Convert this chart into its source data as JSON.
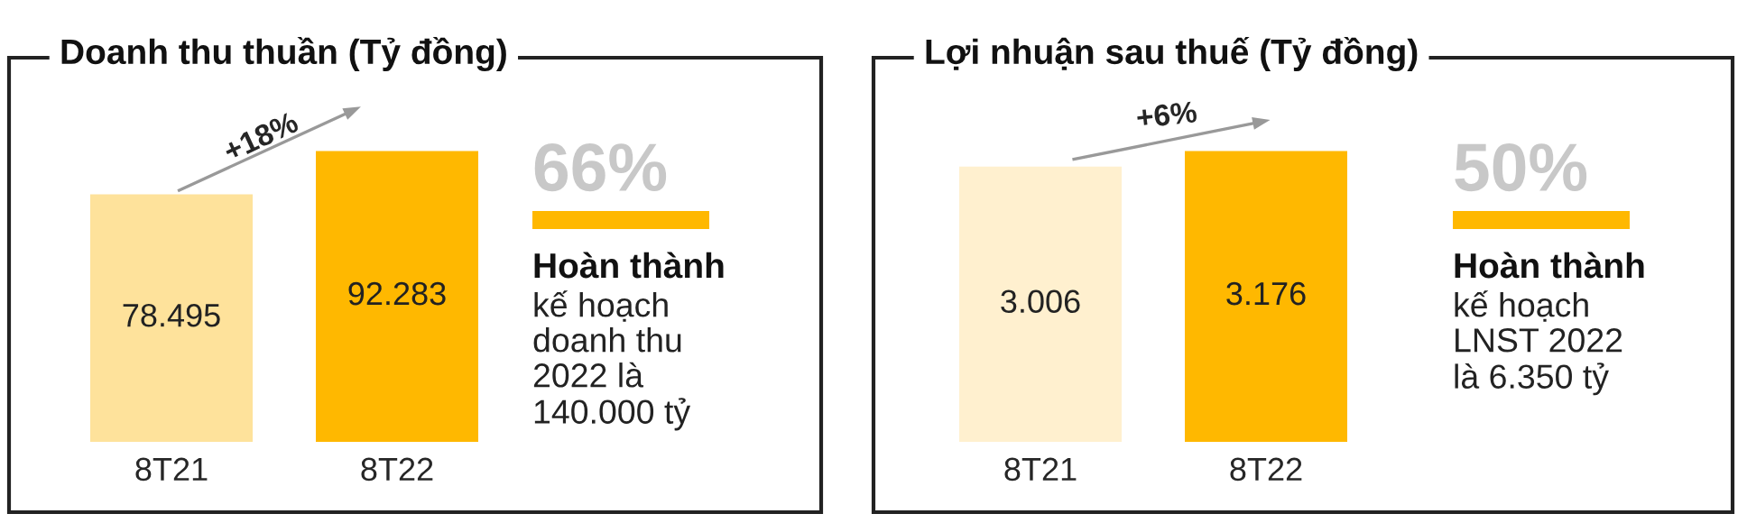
{
  "chart_data": [
    {
      "type": "bar",
      "title": "Doanh thu thuần (Tỷ đồng)",
      "categories": [
        "8T21",
        "8T22"
      ],
      "values": [
        78495,
        92283
      ],
      "value_labels": [
        "78.495",
        "92.283"
      ],
      "colors": [
        "#fee29b",
        "#ffb800"
      ],
      "annotations": [
        "+18%",
        "66%",
        "Hoàn thành",
        "kế hoạch\ndoanh thu\n2022 là\n140.000 tỷ"
      ]
    },
    {
      "type": "bar",
      "title": "Lợi nhuận sau thuế (Tỷ đồng)",
      "categories": [
        "8T21",
        "8T22"
      ],
      "values": [
        3006,
        3176
      ],
      "value_labels": [
        "3.006",
        "3.176"
      ],
      "colors": [
        "#fff0cf",
        "#ffb800"
      ],
      "annotations": [
        "+6%",
        "50%",
        "Hoàn thành",
        "kế hoạch\nLNST 2022\nlà 6.350 tỷ"
      ]
    }
  ]
}
